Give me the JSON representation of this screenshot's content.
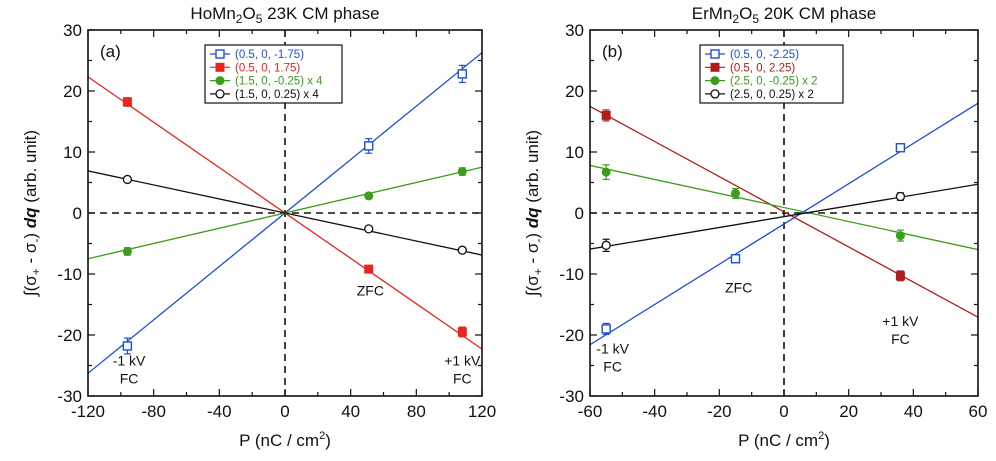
{
  "chart_data": [
    {
      "type": "scatter",
      "panel": "(a)",
      "title": {
        "base": "HoMn",
        "sub1": "2",
        "mid": "O",
        "sub2": "5",
        "rest": "  23K  CM phase"
      },
      "xlabel": {
        "pre": "P (nC / cm",
        "sup": "2",
        "post": ")"
      },
      "ylabel": {
        "pre": "∫(σ",
        "sub1": "+",
        "mid": " - σ",
        "sub2": "-",
        "post": ") ",
        "dq": "dq",
        "end": " (arb. unit)"
      },
      "xlim": [
        -120,
        120
      ],
      "ylim": [
        -30,
        30
      ],
      "xticks": [
        -120,
        -80,
        -40,
        0,
        40,
        80,
        120
      ],
      "yticks": [
        -30,
        -20,
        -10,
        0,
        10,
        20,
        30
      ],
      "annotations": [
        {
          "lines": [
            "-1 kV",
            "FC"
          ],
          "x": -95,
          "y": -25
        },
        {
          "lines": [
            "ZFC"
          ],
          "x": 52,
          "y": -13.5
        },
        {
          "lines": [
            "+1 kV",
            "FC"
          ],
          "x": 108,
          "y": -25
        }
      ],
      "series": [
        {
          "name": "(0.5, 0, -1.75)",
          "color": "#1f4ed8",
          "marker": "open-square",
          "x": [
            -96,
            51,
            108
          ],
          "y": [
            -21.8,
            11,
            22.8
          ],
          "err": [
            1.3,
            1.2,
            1.4
          ],
          "fit_slope": 0.219,
          "fit_intercept": 0.0
        },
        {
          "name": "(0.5, 0, 1.75)",
          "color": "#e8251f",
          "marker": "filled-square",
          "x": [
            -96,
            51,
            108
          ],
          "y": [
            18.2,
            -9.2,
            -19.5
          ],
          "err": [
            0.7,
            0.5,
            0.8
          ],
          "fit_slope": -0.186,
          "fit_intercept": 0.0
        },
        {
          "name": "(1.5, 0, -0.25) x 4",
          "color": "#3c9c1c",
          "marker": "filled-circle",
          "x": [
            -96,
            51,
            108
          ],
          "y": [
            -6.3,
            2.8,
            6.8
          ],
          "err": [
            0.6,
            0.4,
            0.6
          ],
          "fit_slope": 0.0625,
          "fit_intercept": 0.0
        },
        {
          "name": "(1.5, 0, 0.25) x 4",
          "color": "#111111",
          "marker": "open-circle",
          "x": [
            -96,
            51,
            108
          ],
          "y": [
            5.5,
            -2.6,
            -6.1
          ],
          "err": [
            0.4,
            0.4,
            0.4
          ],
          "fit_slope": -0.0575,
          "fit_intercept": 0.0
        }
      ]
    },
    {
      "type": "scatter",
      "panel": "(b)",
      "title": {
        "base": "ErMn",
        "sub1": "2",
        "mid": "O",
        "sub2": "5",
        "rest": "  20K  CM phase"
      },
      "xlabel": {
        "pre": "P (nC / cm",
        "sup": "2",
        "post": ")"
      },
      "ylabel": {
        "pre": "∫(σ",
        "sub1": "+",
        "mid": " - σ",
        "sub2": "-",
        "post": ") ",
        "dq": "dq",
        "end": " (arb. unit)"
      },
      "xlim": [
        -60,
        60
      ],
      "ylim": [
        -30,
        30
      ],
      "xticks": [
        -60,
        -40,
        -20,
        0,
        20,
        40,
        60
      ],
      "yticks": [
        -30,
        -20,
        -10,
        0,
        10,
        20,
        30
      ],
      "annotations": [
        {
          "lines": [
            "-1 kV",
            "FC"
          ],
          "x": -53,
          "y": -23
        },
        {
          "lines": [
            "ZFC"
          ],
          "x": -14,
          "y": -13
        },
        {
          "lines": [
            "+1 kV",
            "FC"
          ],
          "x": 36,
          "y": -18.5
        }
      ],
      "series": [
        {
          "name": "(0.5, 0, -2.25)",
          "color": "#1f4ed8",
          "marker": "open-square",
          "x": [
            -55,
            -15,
            36
          ],
          "y": [
            -19,
            -7.5,
            10.7
          ],
          "err": [
            0.9,
            0.5,
            0.6
          ],
          "fit_slope": 0.33,
          "fit_intercept": -1.8
        },
        {
          "name": "(0.5, 0, 2.25)",
          "color": "#b01c1c",
          "marker": "filled-square",
          "x": [
            -55,
            36
          ],
          "y": [
            16,
            -10.3
          ],
          "err": [
            0.9,
            0.8
          ],
          "fit_slope": -0.288,
          "fit_intercept": 0.2
        },
        {
          "name": "(2.5, 0, -0.25) x 2",
          "color": "#3c9c1c",
          "marker": "filled-circle",
          "x": [
            -55,
            -15,
            36
          ],
          "y": [
            6.7,
            3.2,
            -3.7
          ],
          "err": [
            1.2,
            0.8,
            0.9
          ],
          "fit_slope": -0.115,
          "fit_intercept": 0.9
        },
        {
          "name": "(2.5, 0, 0.25) x 2",
          "color": "#111111",
          "marker": "open-circle",
          "x": [
            -55,
            36
          ],
          "y": [
            -5.3,
            2.7
          ],
          "err": [
            1.0,
            0.6
          ],
          "fit_slope": 0.0885,
          "fit_intercept": -0.6
        }
      ]
    }
  ]
}
